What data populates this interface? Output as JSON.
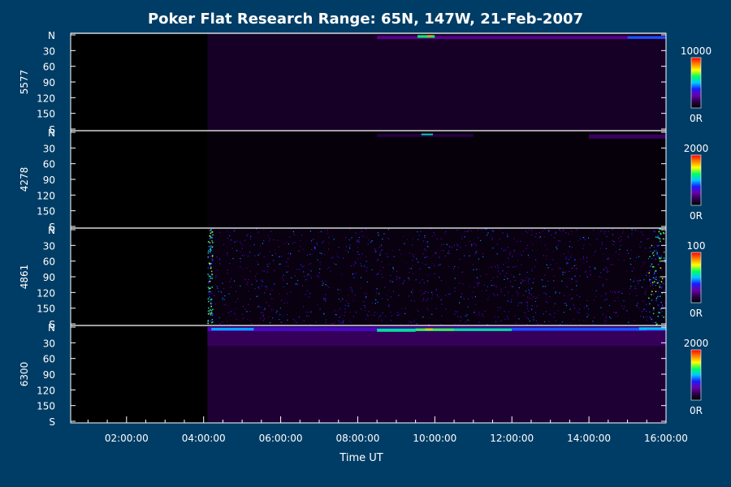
{
  "chart_data": {
    "type": "heatmap",
    "title": "Poker Flat Research Range: 65N, 147W, 21-Feb-2007",
    "xlabel": "Time UT",
    "x_ticks": [
      "02:00:00",
      "04:00:00",
      "06:00:00",
      "08:00:00",
      "10:00:00",
      "12:00:00",
      "14:00:00",
      "16:00:00"
    ],
    "x_tick_hours": [
      2,
      4,
      6,
      8,
      10,
      12,
      14,
      16
    ],
    "x_range_hours": [
      0.55,
      16.0
    ],
    "data_start_hour": 4.1,
    "y_ticks": [
      "N",
      "30",
      "60",
      "90",
      "120",
      "150",
      "S"
    ],
    "y_tick_values": [
      0,
      30,
      60,
      90,
      120,
      150,
      180
    ],
    "y_range": [
      0,
      180
    ],
    "colormap": [
      "#000000",
      "#2a004a",
      "#6a00a8",
      "#1a1aff",
      "#00c8ff",
      "#00ff60",
      "#ffff00",
      "#ff8000",
      "#ff0000"
    ],
    "axis_color": "#ffffff",
    "background_color": "#003d66",
    "panels": [
      {
        "wavelength": "5577",
        "scale_max": "10000",
        "scale_min": "0R",
        "background_level": 0.07,
        "bands": [
          {
            "t0": 8.5,
            "t1": 16.0,
            "angle": 5,
            "width": 6,
            "level": 0.22
          },
          {
            "t0": 15.0,
            "t1": 16.0,
            "angle": 5,
            "width": 5,
            "level": 0.42
          },
          {
            "t0": 9.55,
            "t1": 10.0,
            "angle": 3,
            "width": 5,
            "level": 0.62
          },
          {
            "t0": 9.8,
            "t1": 9.95,
            "angle": 2,
            "width": 3,
            "level": 0.85
          }
        ]
      },
      {
        "wavelength": "4278",
        "scale_max": "2000",
        "scale_min": "0R",
        "background_level": 0.02,
        "bands": [
          {
            "t0": 8.5,
            "t1": 11.0,
            "angle": 6,
            "width": 6,
            "level": 0.12
          },
          {
            "t0": 14.0,
            "t1": 16.0,
            "angle": 8,
            "width": 8,
            "level": 0.16
          },
          {
            "t0": 9.65,
            "t1": 9.95,
            "angle": 4,
            "width": 3,
            "level": 0.55
          }
        ]
      },
      {
        "wavelength": "4861",
        "scale_max": "100",
        "scale_min": "0R",
        "background_level": 0.03,
        "noise": true,
        "bands": []
      },
      {
        "wavelength": "6300",
        "scale_max": "2000",
        "scale_min": "0R",
        "background_level": 0.1,
        "bands": [
          {
            "t0": 4.1,
            "t1": 16.0,
            "angle": 4,
            "width": 8,
            "level": 0.3
          },
          {
            "t0": 4.1,
            "t1": 16.0,
            "angle": 22,
            "width": 28,
            "level": 0.15
          },
          {
            "t0": 4.2,
            "t1": 5.3,
            "angle": 4,
            "width": 5,
            "level": 0.48
          },
          {
            "t0": 8.5,
            "t1": 9.5,
            "angle": 6,
            "width": 6,
            "level": 0.58
          },
          {
            "t0": 9.5,
            "t1": 10.5,
            "angle": 5,
            "width": 5,
            "level": 0.65
          },
          {
            "t0": 10.5,
            "t1": 12.0,
            "angle": 5,
            "width": 5,
            "level": 0.58
          },
          {
            "t0": 12.0,
            "t1": 15.5,
            "angle": 4,
            "width": 5,
            "level": 0.42
          },
          {
            "t0": 9.75,
            "t1": 9.95,
            "angle": 4,
            "width": 3,
            "level": 0.8
          },
          {
            "t0": 15.3,
            "t1": 16.0,
            "angle": 3,
            "width": 5,
            "level": 0.5
          }
        ]
      }
    ]
  }
}
